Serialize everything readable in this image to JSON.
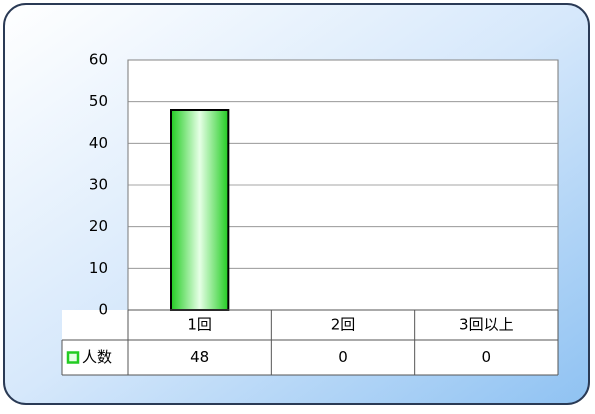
{
  "chart_data": {
    "type": "bar",
    "categories": [
      "1回",
      "2回",
      "3回以上"
    ],
    "series": [
      {
        "name": "人数",
        "color": "#22cc22",
        "values": [
          48,
          0,
          0
        ]
      }
    ],
    "ylim": [
      0,
      60
    ],
    "yticks": [
      0,
      10,
      20,
      30,
      40,
      50,
      60
    ],
    "grid": true
  }
}
